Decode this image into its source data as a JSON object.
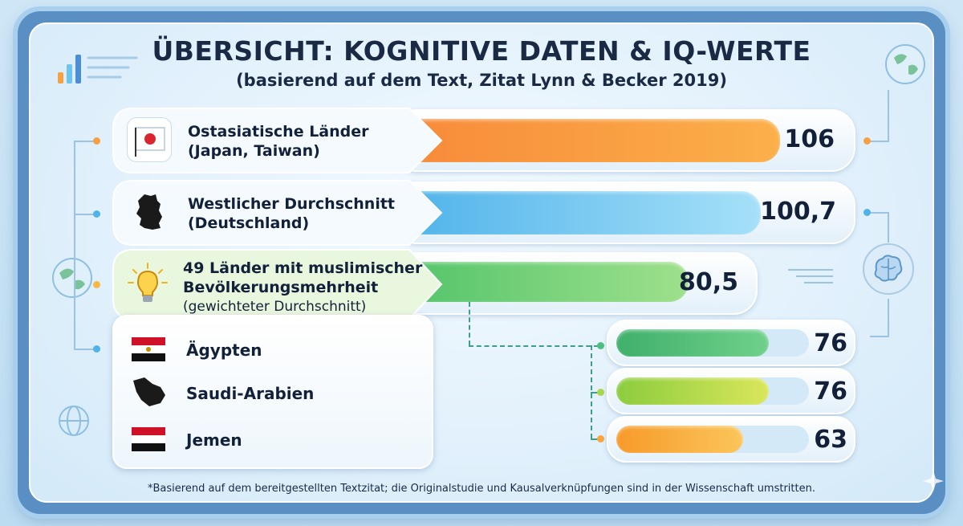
{
  "title": "ÜBERSICHT: KOGNITIVE DATEN & IQ-WERTE",
  "subtitle": "(basierend auf dem Text, Zitat Lynn & Becker 2019)",
  "footnote": "*Basierend auf dem bereitgestellten Textzitat; die Originalstudie und Kausalverknüpfungen sind in der Wissenschaft umstritten.",
  "colors": {
    "orange": "#f7a043",
    "blue": "#6cc4ef",
    "green": "#7dd47a",
    "darkgreen": "#4cbf7c",
    "lime": "#a8d84a",
    "amber": "#f9a53a"
  },
  "icons": {
    "japan": "japan-flag-icon",
    "germany": "germany-map-icon",
    "muslim": "lightbulb-icon",
    "egypt": "egypt-flag-icon",
    "saudi": "saudi-map-icon",
    "yemen": "yemen-flag-icon"
  },
  "chart_data": {
    "type": "bar",
    "title": "ÜBERSICHT: KOGNITIVE DATEN & IQ-WERTE",
    "subtitle": "(basierend auf dem Text, Zitat Lynn & Becker 2019)",
    "scale_max": 106,
    "main": [
      {
        "label": "Ostasiatische Länder",
        "sublabel": "(Japan, Taiwan)",
        "value": 106,
        "value_label": "106"
      },
      {
        "label": "Westlicher Durchschnitt",
        "sublabel": "(Deutschland)",
        "value": 100.7,
        "value_label": "100,7"
      },
      {
        "label": "49 Länder mit muslimischer Bevölkerungsmehrheit",
        "sublabel": "(gewichteter Durchschnitt)",
        "value": 80.5,
        "value_label": "80,5"
      }
    ],
    "sub": [
      {
        "label": "Ägypten",
        "value": 76,
        "value_label": "76"
      },
      {
        "label": "Saudi-Arabien",
        "value": 76,
        "value_label": "76"
      },
      {
        "label": "Jemen",
        "value": 63,
        "value_label": "63"
      }
    ]
  }
}
